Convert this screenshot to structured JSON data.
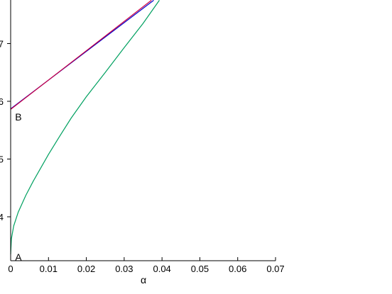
{
  "chart_data": {
    "type": "line",
    "xlabel": "α",
    "ylabel": "",
    "xlim": [
      0,
      0.07
    ],
    "ylim": [
      3.15,
      7.75
    ],
    "x_ticks": [
      {
        "value": 0,
        "label": "0"
      },
      {
        "value": 0.01,
        "label": "0.01"
      },
      {
        "value": 0.02,
        "label": "0.02"
      },
      {
        "value": 0.03,
        "label": "0.03"
      },
      {
        "value": 0.04,
        "label": "0.04"
      },
      {
        "value": 0.05,
        "label": "0.05"
      },
      {
        "value": 0.06,
        "label": "0.06"
      },
      {
        "value": 0.07,
        "label": "0.07"
      }
    ],
    "y_ticks": [
      {
        "value": 4,
        "label": "4"
      },
      {
        "value": 5,
        "label": "5"
      },
      {
        "value": 6,
        "label": "6"
      },
      {
        "value": 7,
        "label": "7"
      }
    ],
    "grid": false,
    "series": [
      {
        "color": "#0000cc",
        "x": [
          0,
          0.0378
        ],
        "y": [
          5.87,
          7.75
        ]
      },
      {
        "color": "#cc0044",
        "x": [
          0,
          0.0372
        ],
        "y": [
          5.86,
          7.75
        ]
      },
      {
        "color": "#00a060",
        "x": [
          0,
          0.0002,
          0.0008,
          0.002,
          0.004,
          0.006,
          0.008,
          0.01,
          0.013,
          0.016,
          0.02,
          0.025,
          0.03,
          0.035,
          0.0393
        ],
        "y": [
          3.35,
          3.62,
          3.84,
          4.08,
          4.37,
          4.62,
          4.85,
          5.08,
          5.4,
          5.71,
          6.08,
          6.5,
          6.93,
          7.35,
          7.75
        ]
      }
    ],
    "annotations": [
      {
        "text": "A",
        "x": 0.0006,
        "y": 3.3
      },
      {
        "text": "B",
        "x": 0.0006,
        "y": 5.73
      }
    ]
  }
}
